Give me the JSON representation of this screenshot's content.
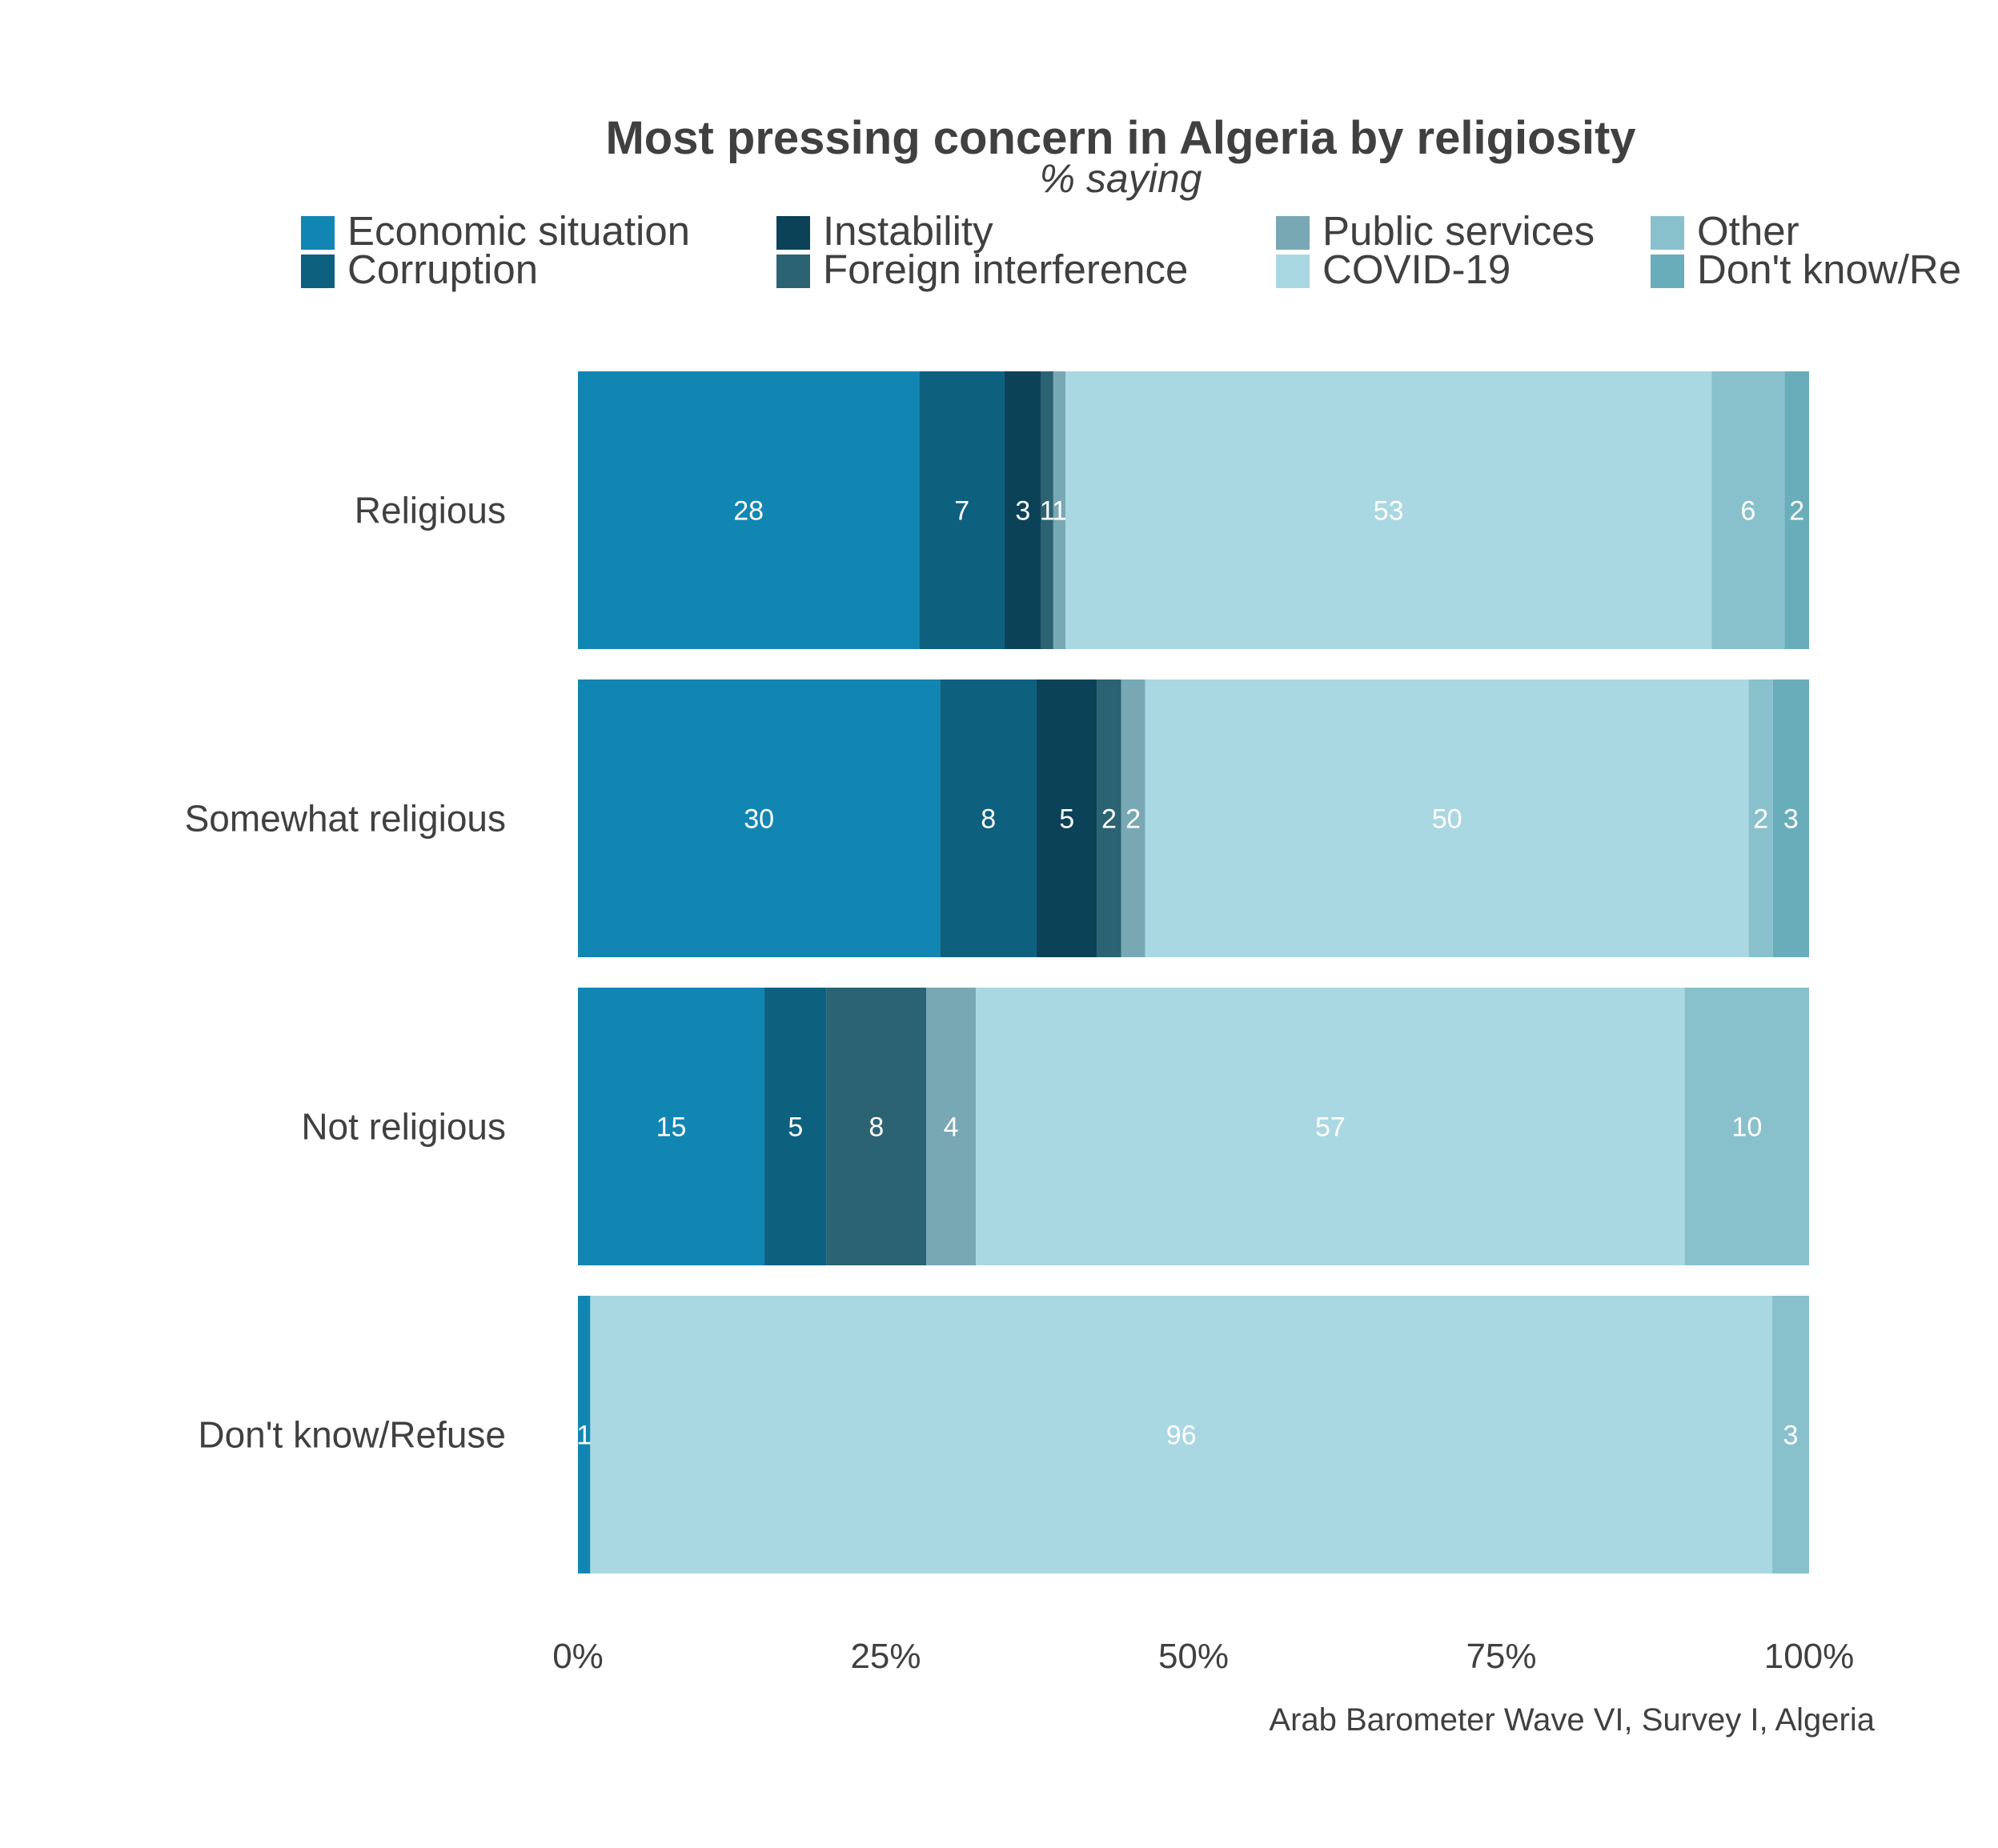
{
  "chart_data": {
    "type": "bar",
    "orientation": "horizontal",
    "stacked": true,
    "title": "Most pressing concern in Algeria by religiosity",
    "subtitle": "% saying",
    "source": "Arab Barometer Wave VI, Survey I, Algeria",
    "categories": [
      "Religious",
      "Somewhat religious",
      "Not religious",
      "Don't know/Refuse"
    ],
    "xlim": [
      0,
      100
    ],
    "x_ticks": [
      "0%",
      "25%",
      "50%",
      "75%",
      "100%"
    ],
    "legend_position": "top",
    "grid": false,
    "series": [
      {
        "name": "Economic situation",
        "color": "#1286b2",
        "values": [
          28,
          30,
          15,
          1
        ],
        "labels": [
          "28",
          "30",
          "15",
          "1"
        ]
      },
      {
        "name": "Corruption",
        "color": "#0e607f",
        "values": [
          7,
          8,
          5,
          0
        ],
        "labels": [
          "7",
          "8",
          "5",
          ""
        ]
      },
      {
        "name": "Instability",
        "color": "#0b4257",
        "values": [
          3,
          5,
          0,
          0
        ],
        "labels": [
          "3",
          "5",
          "",
          ""
        ]
      },
      {
        "name": "Foreign interference",
        "color": "#2b6373",
        "values": [
          1,
          2,
          8,
          0
        ],
        "labels": [
          "1",
          "2",
          "8",
          ""
        ]
      },
      {
        "name": "Public services",
        "color": "#78a8b4",
        "values": [
          1,
          2,
          4,
          0
        ],
        "labels": [
          "1",
          "2",
          "4",
          ""
        ]
      },
      {
        "name": "COVID-19",
        "color": "#aad8e2",
        "values": [
          53,
          50,
          57,
          96
        ],
        "labels": [
          "53",
          "50",
          "57",
          "96"
        ]
      },
      {
        "name": "Other",
        "color": "#88c1cc",
        "values": [
          6,
          2,
          10,
          3
        ],
        "labels": [
          "6",
          "2",
          "10",
          "3"
        ]
      },
      {
        "name": "Don't know/Re",
        "color": "#69adba",
        "values": [
          2,
          3,
          0,
          0
        ],
        "labels": [
          "2",
          "3",
          "",
          ""
        ]
      }
    ]
  }
}
